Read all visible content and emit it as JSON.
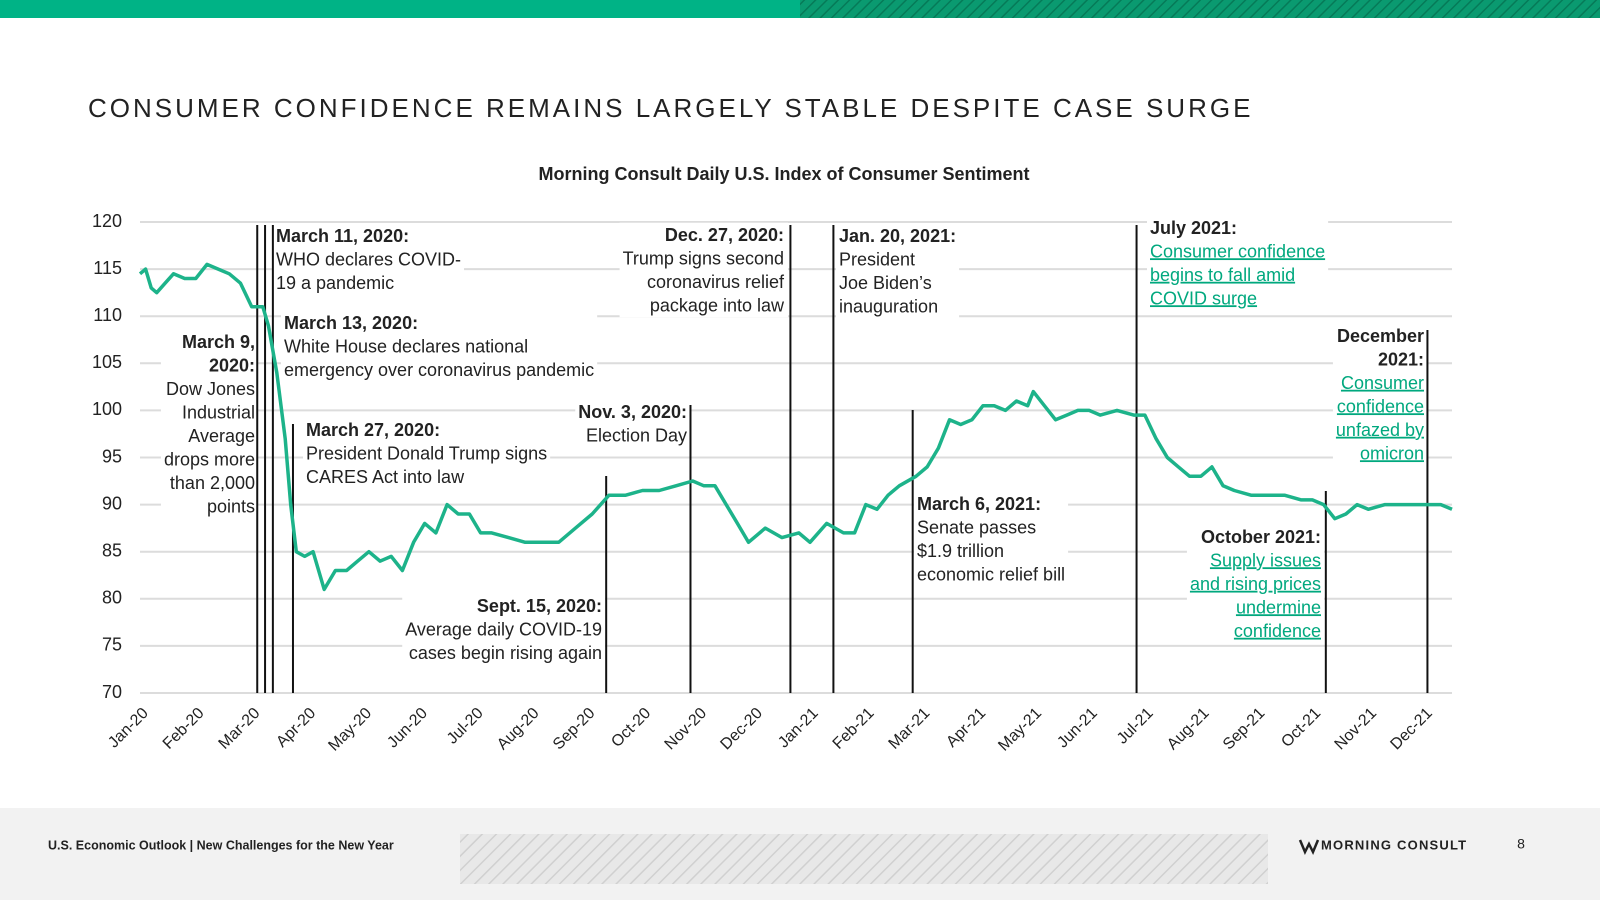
{
  "header": {
    "title": "CONSUMER CONFIDENCE REMAINS LARGELY STABLE DESPITE CASE SURGE"
  },
  "chart_data": {
    "type": "line",
    "title": "Morning Consult Daily U.S. Index of Consumer Sentiment",
    "color": "#1db38a",
    "x": [
      0,
      0.1,
      0.2,
      0.3,
      0.45,
      0.6,
      0.8,
      1.0,
      1.2,
      1.4,
      1.6,
      1.8,
      2.0,
      2.2,
      2.3,
      2.45,
      2.6,
      2.7,
      2.8,
      2.95,
      3.1,
      3.3,
      3.5,
      3.7,
      3.9,
      4.1,
      4.3,
      4.5,
      4.7,
      4.9,
      5.1,
      5.3,
      5.5,
      5.7,
      5.9,
      6.1,
      6.3,
      6.6,
      6.9,
      7.2,
      7.5,
      7.8,
      8.1,
      8.4,
      8.7,
      9.0,
      9.3,
      9.6,
      9.9,
      10.1,
      10.3,
      10.5,
      10.7,
      10.9,
      11.2,
      11.5,
      11.8,
      12.0,
      12.3,
      12.6,
      12.8,
      13.0,
      13.2,
      13.4,
      13.6,
      13.9,
      14.1,
      14.3,
      14.5,
      14.7,
      14.9,
      15.1,
      15.3,
      15.5,
      15.7,
      15.9,
      16.0,
      16.2,
      16.4,
      16.6,
      16.8,
      17.0,
      17.2,
      17.5,
      17.8,
      18.0,
      18.2,
      18.4,
      18.6,
      18.8,
      19.0,
      19.2,
      19.4,
      19.6,
      19.9,
      20.2,
      20.5,
      20.8,
      21.0,
      21.2,
      21.4,
      21.6,
      21.8,
      22.0,
      22.3,
      22.6,
      22.9,
      23.1,
      23.3,
      23.5
    ],
    "values": [
      114.5,
      115,
      113,
      112.5,
      113.5,
      114.5,
      114,
      114,
      115.5,
      115,
      114.5,
      113.5,
      111,
      111,
      109,
      104,
      97,
      90,
      85,
      84.5,
      85,
      81,
      83,
      83,
      84,
      85,
      84,
      84.5,
      83,
      86,
      88,
      87,
      90,
      89,
      89,
      87,
      87,
      86.5,
      86,
      86,
      86,
      87.5,
      89,
      91,
      91,
      91.5,
      91.5,
      92,
      92.5,
      92,
      92,
      90,
      88,
      86,
      87.5,
      86.5,
      87,
      86,
      88,
      87,
      87,
      90,
      89.5,
      91,
      92,
      93,
      94,
      96,
      99,
      98.5,
      99,
      100.5,
      100.5,
      100,
      101,
      100.5,
      102,
      100.5,
      99,
      99.5,
      100,
      100,
      99.5,
      100,
      99.5,
      99.5,
      97,
      95,
      94,
      93,
      93,
      94,
      92,
      91.5,
      91,
      91,
      91,
      90.5,
      90.5,
      90,
      88.5,
      89,
      90,
      89.5,
      90,
      90,
      90,
      90,
      90,
      89.5
    ],
    "xlim": [
      0,
      23.5
    ],
    "xticks": [
      {
        "value": 0,
        "label": "Jan-20"
      },
      {
        "value": 1,
        "label": "Feb-20"
      },
      {
        "value": 2,
        "label": "Mar-20"
      },
      {
        "value": 3,
        "label": "Apr-20"
      },
      {
        "value": 4,
        "label": "May-20"
      },
      {
        "value": 5,
        "label": "Jun-20"
      },
      {
        "value": 6,
        "label": "Jul-20"
      },
      {
        "value": 7,
        "label": "Aug-20"
      },
      {
        "value": 8,
        "label": "Sep-20"
      },
      {
        "value": 9,
        "label": "Oct-20"
      },
      {
        "value": 10,
        "label": "Nov-20"
      },
      {
        "value": 11,
        "label": "Dec-20"
      },
      {
        "value": 12,
        "label": "Jan-21"
      },
      {
        "value": 13,
        "label": "Feb-21"
      },
      {
        "value": 14,
        "label": "Mar-21"
      },
      {
        "value": 15,
        "label": "Apr-21"
      },
      {
        "value": 16,
        "label": "May-21"
      },
      {
        "value": 17,
        "label": "Jun-21"
      },
      {
        "value": 18,
        "label": "Jul-21"
      },
      {
        "value": 19,
        "label": "Aug-21"
      },
      {
        "value": 20,
        "label": "Sep-21"
      },
      {
        "value": 21,
        "label": "Oct-21"
      },
      {
        "value": 22,
        "label": "Nov-21"
      },
      {
        "value": 23,
        "label": "Dec-21"
      }
    ],
    "ylim": [
      70,
      120
    ],
    "yticks": [
      70,
      75,
      80,
      85,
      90,
      95,
      100,
      105,
      110,
      115,
      120
    ],
    "grid": true,
    "annotations": [
      {
        "x": 2.1,
        "title": [
          "March 9,",
          "2020:"
        ],
        "text": [
          "Dow Jones",
          "Industrial",
          "Average",
          "drops more",
          "than 2,000",
          "points"
        ]
      },
      {
        "x": 2.24,
        "title": [
          "March 11, 2020:"
        ],
        "text": [
          "WHO declares COVID-",
          "19 a pandemic"
        ]
      },
      {
        "x": 2.38,
        "title": [
          "March 13, 2020:"
        ],
        "text": [
          "White House declares national",
          "emergency over coronavirus pandemic"
        ]
      },
      {
        "x": 2.74,
        "title": [
          "March 27, 2020:"
        ],
        "text": [
          "President Donald Trump signs",
          "CARES Act into law"
        ]
      },
      {
        "x": 8.35,
        "title": [
          "Sept. 15, 2020:"
        ],
        "text": [
          "Average daily COVID-19",
          "cases begin rising again"
        ]
      },
      {
        "x": 9.86,
        "title": [
          "Nov. 3, 2020:"
        ],
        "text": [
          "Election Day"
        ]
      },
      {
        "x": 11.65,
        "title": [
          "Dec. 27, 2020:"
        ],
        "text": [
          "Trump signs second",
          "coronavirus relief",
          "package into law"
        ]
      },
      {
        "x": 12.42,
        "title": [
          "Jan. 20, 2021:"
        ],
        "text": [
          "President",
          "Joe Biden’s",
          "inauguration"
        ]
      },
      {
        "x": 13.84,
        "title": [
          "March 6, 2021:"
        ],
        "text": [
          "Senate passes",
          "$1.9 trillion",
          "economic relief bill"
        ]
      },
      {
        "x": 17.85,
        "title": [
          "July 2021:"
        ],
        "text": [
          "Consumer confidence",
          "begins to fall amid",
          "COVID surge"
        ]
      },
      {
        "x": 21.24,
        "title": [
          "October 2021:"
        ],
        "text": [
          "Supply issues",
          "and rising prices",
          "undermine",
          "confidence"
        ]
      },
      {
        "x": 23.06,
        "title": [
          "December",
          "2021:"
        ],
        "text": [
          "Consumer",
          "confidence",
          "unfazed by",
          "omicron"
        ]
      }
    ]
  },
  "footer": {
    "left": "U.S. Economic Outlook | New Challenges for the New Year",
    "brand": "MORNING CONSULT",
    "page": "8"
  }
}
